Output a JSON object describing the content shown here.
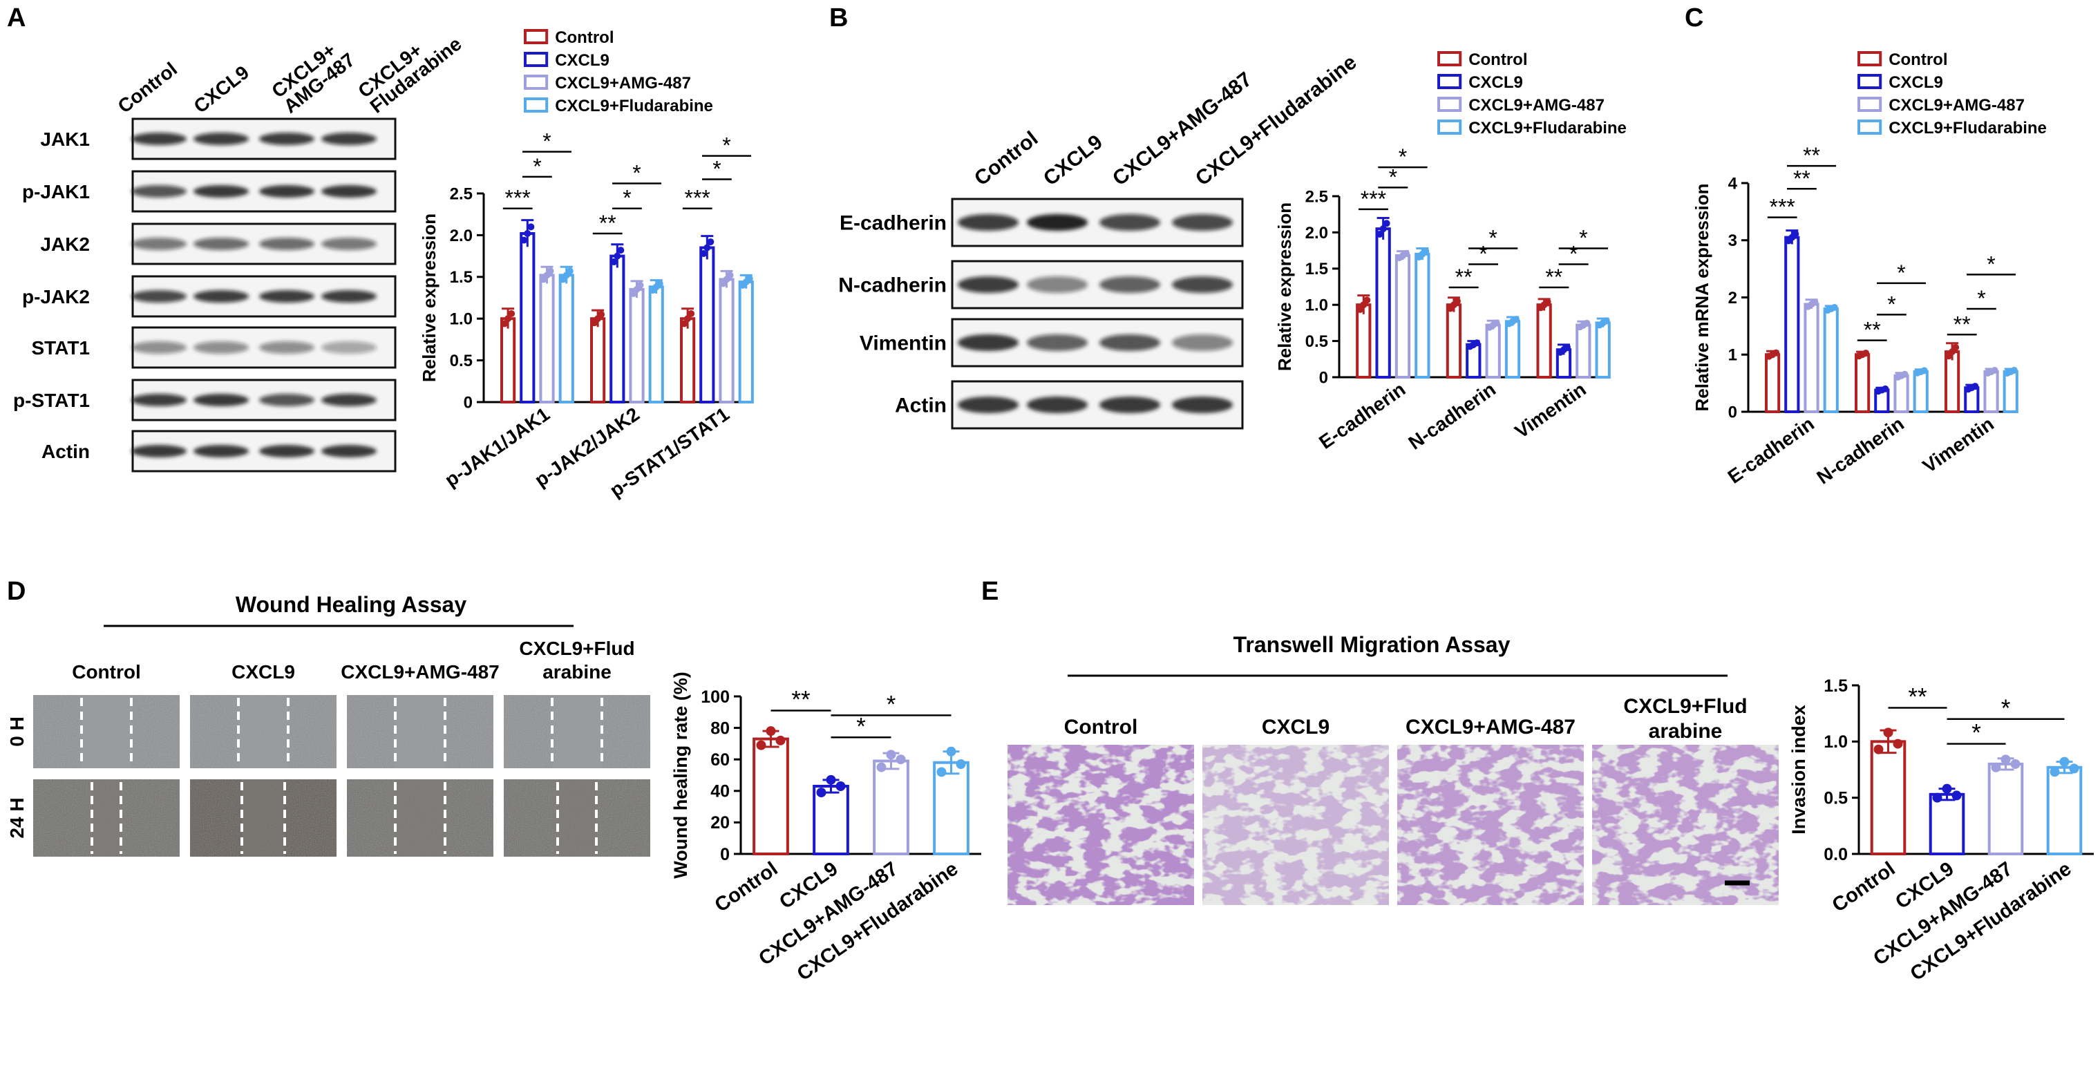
{
  "colors": {
    "control": "#b22222",
    "cxcl9": "#1a1acc",
    "amg": "#9f9fdd",
    "flud": "#55aaee"
  },
  "legend": [
    "Control",
    "CXCL9",
    "CXCL9+AMG-487",
    "CXCL9+Fludarabine"
  ],
  "panels": {
    "A": {
      "letter": "A",
      "lanes": [
        "Control",
        "CXCL9",
        "CXCL9+\nAMG-487",
        "CXCL9+\nFludarabine"
      ],
      "rows": [
        "JAK1",
        "p-JAK1",
        "JAK2",
        "p-JAK2",
        "STAT1",
        "p-STAT1",
        "Actin"
      ]
    },
    "B": {
      "letter": "B",
      "lanes": [
        "Control",
        "CXCL9",
        "CXCL9+AMG-487",
        "CXCL9+Fludarabine"
      ],
      "rows": [
        "E-cadherin",
        "N-cadherin",
        "Vimentin",
        "Actin"
      ]
    },
    "C": {
      "letter": "C"
    },
    "D": {
      "letter": "D",
      "title": "Wound Healing Assay",
      "cols": [
        "Control",
        "CXCL9",
        "CXCL9+AMG-487",
        "CXCL9+Flud\narabine"
      ],
      "rows": [
        "0 H",
        "24 H"
      ]
    },
    "E": {
      "letter": "E",
      "title": "Transwell Migration Assay",
      "cols": [
        "Control",
        "CXCL9",
        "CXCL9+AMG-487",
        "CXCL9+Flud\narabine"
      ]
    }
  },
  "chart_data": [
    {
      "id": "A",
      "type": "bar",
      "categories": [
        "p-JAK1/JAK1",
        "p-JAK2/JAK2",
        "p-STAT1/STAT1"
      ],
      "series": [
        {
          "name": "Control",
          "values": [
            1.0,
            1.0,
            1.0
          ],
          "err": [
            0.12,
            0.1,
            0.12
          ]
        },
        {
          "name": "CXCL9",
          "values": [
            2.02,
            1.75,
            1.85
          ],
          "err": [
            0.16,
            0.14,
            0.14
          ]
        },
        {
          "name": "CXCL9+AMG-487",
          "values": [
            1.52,
            1.35,
            1.47
          ],
          "err": [
            0.1,
            0.1,
            0.1
          ]
        },
        {
          "name": "CXCL9+Fludarabine",
          "values": [
            1.52,
            1.38,
            1.44
          ],
          "err": [
            0.1,
            0.08,
            0.08
          ]
        }
      ],
      "ylabel": "Relative expression",
      "ylim": [
        0,
        2.5
      ],
      "yticks": [
        "0",
        "0.5",
        "1.0",
        "1.5",
        "2.0",
        "2.5"
      ],
      "significance": [
        {
          "cat": 0,
          "a": 0,
          "b": 1,
          "label": "***",
          "y": 2.32
        },
        {
          "cat": 0,
          "a": 1,
          "b": 2,
          "label": "*",
          "y": 2.7
        },
        {
          "cat": 0,
          "a": 1,
          "b": 3,
          "label": "*",
          "y": 3.0
        },
        {
          "cat": 1,
          "a": 0,
          "b": 1,
          "label": "**",
          "y": 2.02
        },
        {
          "cat": 1,
          "a": 1,
          "b": 2,
          "label": "*",
          "y": 2.32
        },
        {
          "cat": 1,
          "a": 1,
          "b": 3,
          "label": "*",
          "y": 2.62
        },
        {
          "cat": 2,
          "a": 0,
          "b": 1,
          "label": "***",
          "y": 2.32
        },
        {
          "cat": 2,
          "a": 1,
          "b": 2,
          "label": "*",
          "y": 2.67
        },
        {
          "cat": 2,
          "a": 1,
          "b": 3,
          "label": "*",
          "y": 2.95
        }
      ]
    },
    {
      "id": "B",
      "type": "bar",
      "categories": [
        "E-cadherin",
        "N-cadherin",
        "Vimentin"
      ],
      "series": [
        {
          "name": "Control",
          "values": [
            1.0,
            1.0,
            1.0
          ],
          "err": [
            0.13,
            0.1,
            0.08
          ]
        },
        {
          "name": "CXCL9",
          "values": [
            2.05,
            0.45,
            0.38
          ],
          "err": [
            0.15,
            0.05,
            0.07
          ]
        },
        {
          "name": "CXCL9+AMG-487",
          "values": [
            1.68,
            0.72,
            0.72
          ],
          "err": [
            0.06,
            0.06,
            0.05
          ]
        },
        {
          "name": "CXCL9+Fludarabine",
          "values": [
            1.7,
            0.77,
            0.75
          ],
          "err": [
            0.08,
            0.06,
            0.06
          ]
        }
      ],
      "ylabel": "Relative expression",
      "ylim": [
        0,
        2.5
      ],
      "yticks": [
        "0",
        "0.5",
        "1.0",
        "1.5",
        "2.0",
        "2.5"
      ],
      "significance": [
        {
          "cat": 0,
          "a": 0,
          "b": 1,
          "label": "***",
          "y": 2.32
        },
        {
          "cat": 0,
          "a": 1,
          "b": 2,
          "label": "*",
          "y": 2.62
        },
        {
          "cat": 0,
          "a": 1,
          "b": 3,
          "label": "*",
          "y": 2.9
        },
        {
          "cat": 1,
          "a": 0,
          "b": 1,
          "label": "**",
          "y": 1.24
        },
        {
          "cat": 1,
          "a": 1,
          "b": 2,
          "label": "*",
          "y": 1.56
        },
        {
          "cat": 1,
          "a": 1,
          "b": 3,
          "label": "*",
          "y": 1.78
        },
        {
          "cat": 2,
          "a": 0,
          "b": 1,
          "label": "**",
          "y": 1.24
        },
        {
          "cat": 2,
          "a": 1,
          "b": 2,
          "label": "*",
          "y": 1.56
        },
        {
          "cat": 2,
          "a": 1,
          "b": 3,
          "label": "*",
          "y": 1.78
        }
      ]
    },
    {
      "id": "C",
      "type": "bar",
      "categories": [
        "E-cadherin",
        "N-cadherin",
        "Vimentin"
      ],
      "series": [
        {
          "name": "Control",
          "values": [
            1.0,
            1.0,
            1.05
          ],
          "err": [
            0.06,
            0.05,
            0.15
          ]
        },
        {
          "name": "CXCL9",
          "values": [
            3.05,
            0.38,
            0.42
          ],
          "err": [
            0.12,
            0.04,
            0.05
          ]
        },
        {
          "name": "CXCL9+AMG-487",
          "values": [
            1.88,
            0.63,
            0.7
          ],
          "err": [
            0.08,
            0.05,
            0.05
          ]
        },
        {
          "name": "CXCL9+Fludarabine",
          "values": [
            1.8,
            0.7,
            0.7
          ],
          "err": [
            0.05,
            0.04,
            0.05
          ]
        }
      ],
      "ylabel": "Relative mRNA expression",
      "ylim": [
        0,
        4
      ],
      "yticks": [
        "0",
        "1",
        "2",
        "3",
        "4"
      ],
      "significance": [
        {
          "cat": 0,
          "a": 0,
          "b": 1,
          "label": "***",
          "y": 3.4
        },
        {
          "cat": 0,
          "a": 1,
          "b": 2,
          "label": "**",
          "y": 3.9
        },
        {
          "cat": 0,
          "a": 1,
          "b": 3,
          "label": "**",
          "y": 4.3
        },
        {
          "cat": 1,
          "a": 0,
          "b": 1,
          "label": "**",
          "y": 1.25
        },
        {
          "cat": 1,
          "a": 1,
          "b": 2,
          "label": "*",
          "y": 1.7
        },
        {
          "cat": 1,
          "a": 1,
          "b": 3,
          "label": "*",
          "y": 2.25
        },
        {
          "cat": 2,
          "a": 0,
          "b": 1,
          "label": "**",
          "y": 1.35
        },
        {
          "cat": 2,
          "a": 1,
          "b": 2,
          "label": "*",
          "y": 1.8
        },
        {
          "cat": 2,
          "a": 1,
          "b": 3,
          "label": "*",
          "y": 2.4
        }
      ]
    },
    {
      "id": "D",
      "type": "bar",
      "categories": [
        "Control",
        "CXCL9",
        "CXCL9+AMG-487",
        "CXCL9+Fludarabine"
      ],
      "values": [
        73,
        43,
        59,
        58
      ],
      "err": [
        5,
        4,
        5,
        7
      ],
      "points": [
        [
          69,
          78,
          72
        ],
        [
          39,
          47,
          43
        ],
        [
          55,
          63,
          60
        ],
        [
          52,
          65,
          57
        ]
      ],
      "ylabel": "Wound healing rate (%)",
      "ylim": [
        0,
        100
      ],
      "yticks": [
        "0",
        "20",
        "40",
        "60",
        "80",
        "100"
      ],
      "significance": [
        {
          "a": 0,
          "b": 1,
          "label": "**",
          "y": 91
        },
        {
          "a": 1,
          "b": 2,
          "label": "*",
          "y": 74
        },
        {
          "a": 1,
          "b": 3,
          "label": "*",
          "y": 88
        }
      ]
    },
    {
      "id": "E",
      "type": "bar",
      "categories": [
        "Control",
        "CXCL9",
        "CXCL9+AMG-487",
        "CXCL9+Fludarabine"
      ],
      "values": [
        1.0,
        0.53,
        0.8,
        0.77
      ],
      "err": [
        0.1,
        0.05,
        0.05,
        0.05
      ],
      "points": [
        [
          0.93,
          1.08,
          0.98
        ],
        [
          0.5,
          0.58,
          0.52
        ],
        [
          0.77,
          0.84,
          0.8
        ],
        [
          0.73,
          0.82,
          0.76
        ]
      ],
      "ylabel": "Invasion index",
      "ylim": [
        0,
        1.5
      ],
      "yticks": [
        "0.0",
        "0.5",
        "1.0",
        "1.5"
      ],
      "significance": [
        {
          "a": 0,
          "b": 1,
          "label": "**",
          "y": 1.3
        },
        {
          "a": 1,
          "b": 2,
          "label": "*",
          "y": 0.98
        },
        {
          "a": 1,
          "b": 3,
          "label": "*",
          "y": 1.2
        }
      ]
    }
  ]
}
